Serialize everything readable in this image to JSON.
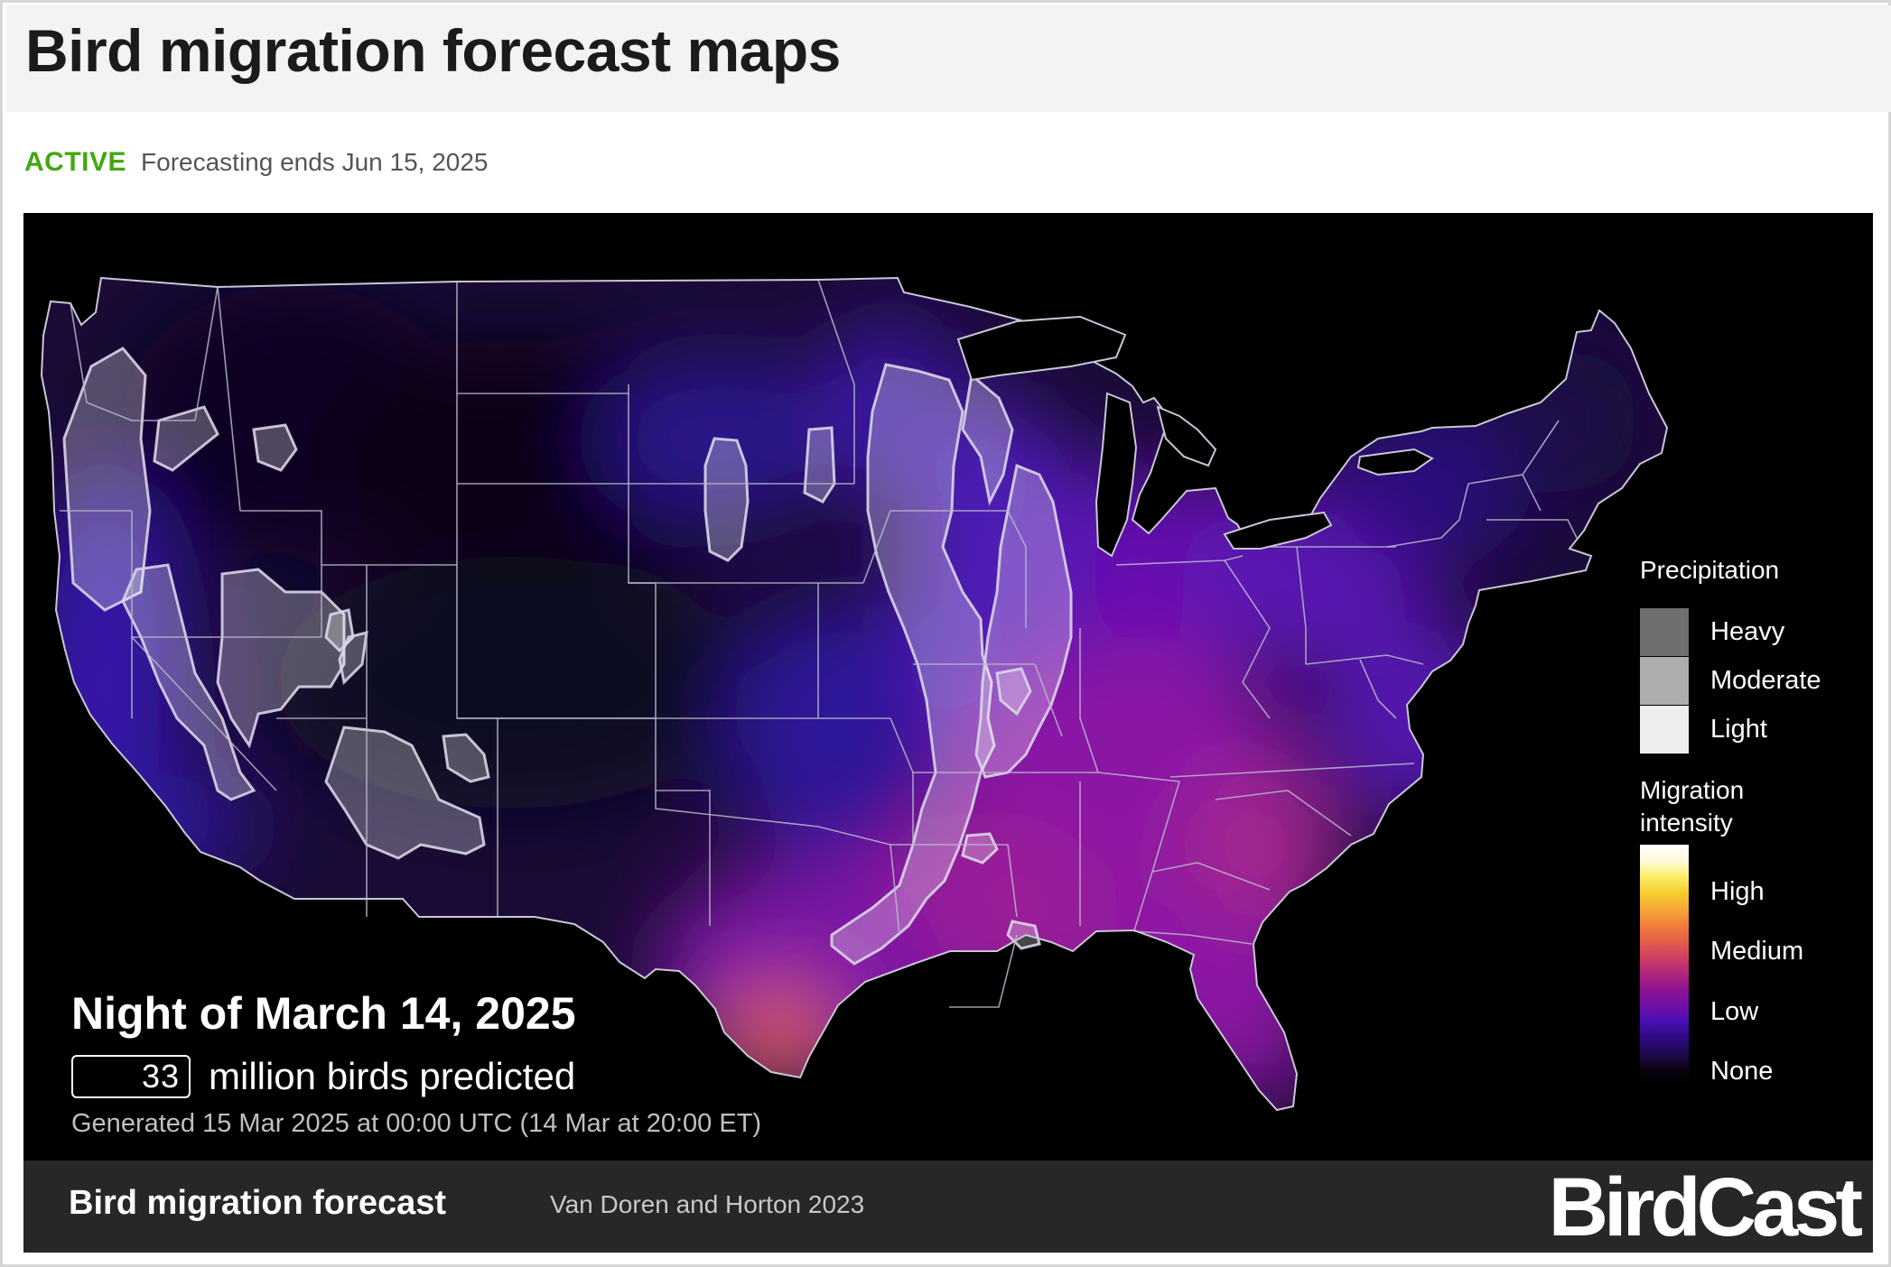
{
  "page": {
    "title": "Bird migration forecast maps"
  },
  "status": {
    "badge": "ACTIVE",
    "badge_color": "#44a712",
    "text": "Forecasting ends Jun 15, 2025"
  },
  "map": {
    "region": "Contiguous United States",
    "night_title": "Night of March 14, 2025",
    "birds_count": "33",
    "birds_label": "million birds predicted",
    "generated": "Generated 15 Mar 2025 at 00:00 UTC (14 Mar at 20:00 ET)"
  },
  "legend": {
    "precipitation_title": "Precipitation",
    "precipitation_levels": [
      {
        "label": "Heavy",
        "color": "#6f6f6f"
      },
      {
        "label": "Moderate",
        "color": "#adadad"
      },
      {
        "label": "Light",
        "color": "#eeeeee"
      }
    ],
    "intensity_title_line1": "Migration",
    "intensity_title_line2": "intensity",
    "intensity_labels": [
      "High",
      "Medium",
      "Low",
      "None"
    ],
    "intensity_colors": [
      "#ffffff",
      "#fff9d9",
      "#fbf06a",
      "#f5cc2f",
      "#f5a536",
      "#f0803a",
      "#e45f4a",
      "#ce3f64",
      "#b0277a",
      "#8e1592",
      "#6d0fa6",
      "#4a10b5",
      "#2f0a82",
      "#1d0a4a",
      "#0b0410",
      "#000000"
    ]
  },
  "footer": {
    "title": "Bird migration forecast",
    "citation": "Van Doren and Horton 2023",
    "logo": "BirdCast"
  }
}
